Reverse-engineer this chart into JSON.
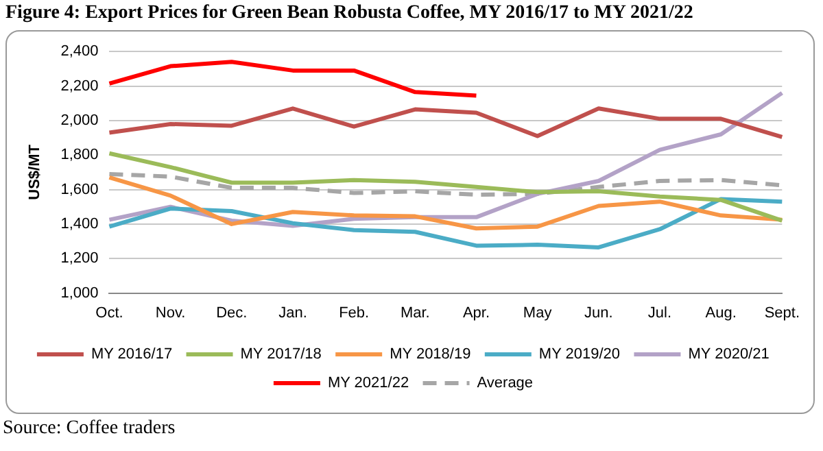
{
  "chart_data": {
    "type": "line",
    "title": "Figure 4:  Export Prices for Green Bean Robusta Coffee, MY 2016/17 to MY 2021/22",
    "ylabel": "US$/MT",
    "categories": [
      "Oct.",
      "Nov.",
      "Dec.",
      "Jan.",
      "Feb.",
      "Mar.",
      "Apr.",
      "May",
      "Jun.",
      "Jul.",
      "Aug.",
      "Sept."
    ],
    "series": [
      {
        "name": "MY 2016/17",
        "color": "#c0504d",
        "values": [
          1930,
          1980,
          1970,
          2070,
          1965,
          2065,
          2045,
          1910,
          2070,
          2010,
          2010,
          1905
        ]
      },
      {
        "name": "MY 2017/18",
        "color": "#9bbb59",
        "values": [
          1810,
          1730,
          1640,
          1640,
          1655,
          1645,
          1615,
          1585,
          1590,
          1560,
          1540,
          1420
        ]
      },
      {
        "name": "MY 2018/19",
        "color": "#f79646",
        "values": [
          1670,
          1565,
          1400,
          1470,
          1450,
          1445,
          1375,
          1385,
          1505,
          1530,
          1450,
          1425
        ]
      },
      {
        "name": "MY 2019/20",
        "color": "#4bacc6",
        "values": [
          1385,
          1490,
          1475,
          1405,
          1365,
          1355,
          1275,
          1280,
          1265,
          1370,
          1545,
          1530
        ]
      },
      {
        "name": "MY 2020/21",
        "color": "#b3a2c7",
        "values": [
          1425,
          1500,
          1420,
          1390,
          1430,
          1440,
          1440,
          1575,
          1650,
          1830,
          1920,
          2160
        ]
      },
      {
        "name": "MY 2021/22",
        "color": "#ff0000",
        "values": [
          2215,
          2315,
          2340,
          2290,
          2290,
          2165,
          2145,
          null,
          null,
          null,
          null,
          null
        ]
      },
      {
        "name": "Average",
        "color": "#a6a6a6",
        "line_style": "dashed",
        "values": [
          1690,
          1675,
          1610,
          1610,
          1580,
          1590,
          1570,
          1575,
          1615,
          1650,
          1655,
          1625
        ]
      }
    ],
    "ylim": [
      1000,
      2400
    ],
    "yticks": [
      {
        "value": 1000,
        "label": "1,000"
      },
      {
        "value": 1200,
        "label": "1,200"
      },
      {
        "value": 1400,
        "label": "1,400"
      },
      {
        "value": 1600,
        "label": "1,600"
      },
      {
        "value": 1800,
        "label": "1,800"
      },
      {
        "value": 2000,
        "label": "2,000"
      },
      {
        "value": 2200,
        "label": "2,200"
      },
      {
        "value": 2400,
        "label": "2,400"
      }
    ],
    "grid": "y",
    "legend": "bottom",
    "marker": "none",
    "annotations": [
      "Source: Coffee traders"
    ]
  }
}
